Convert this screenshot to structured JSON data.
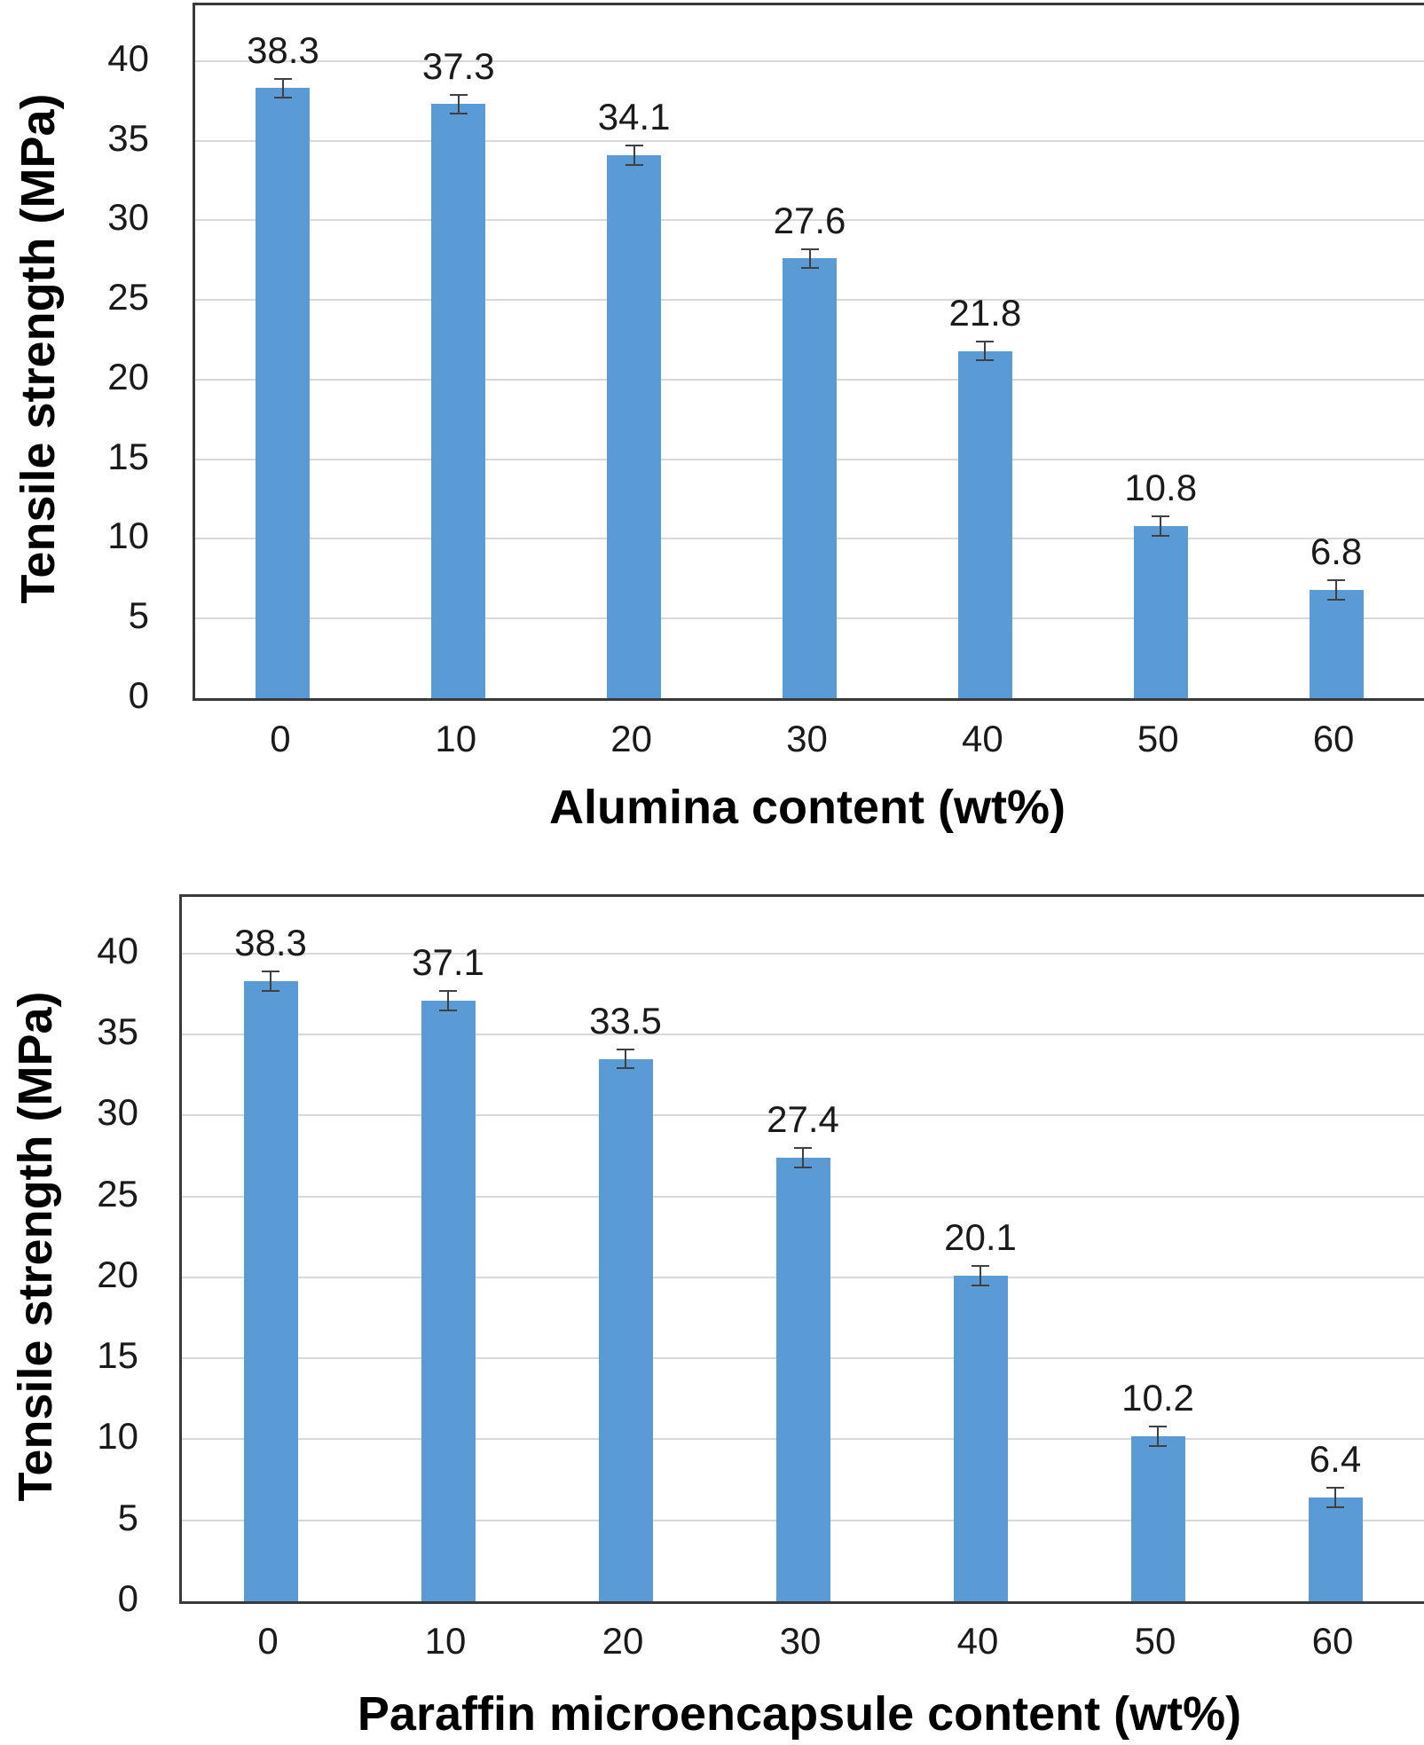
{
  "figure": {
    "background": "#ffffff",
    "bar_color": "#5b9bd5",
    "grid_color": "#d9d9d9",
    "axis_border_color": "#3a3a3a",
    "error_bar_color": "#404040",
    "text_color": "#1a1a1a"
  },
  "chart_data": [
    {
      "type": "bar",
      "title": "",
      "xlabel": "Alumina content (wt%)",
      "ylabel": "Tensile strength (MPa)",
      "categories": [
        "0",
        "10",
        "20",
        "30",
        "40",
        "50",
        "60"
      ],
      "values": [
        38.3,
        37.3,
        34.1,
        27.6,
        21.8,
        10.8,
        6.8
      ],
      "data_labels": [
        "38.3",
        "37.3",
        "34.1",
        "27.6",
        "21.8",
        "10.8",
        "6.8"
      ],
      "error_bars": [
        0.6,
        0.6,
        0.6,
        0.6,
        0.6,
        0.6,
        0.6
      ],
      "yticks": [
        0,
        5,
        10,
        15,
        20,
        25,
        30,
        35,
        40
      ],
      "ylim": [
        0,
        43.5
      ],
      "grid": true,
      "legend": "none",
      "bar_color": "#5b9bd5",
      "grid_color": "#d9d9d9",
      "error_color": "#404040"
    },
    {
      "type": "bar",
      "title": "",
      "xlabel": "Paraffin microencapsule content (wt%)",
      "ylabel": "Tensile strength (MPa)",
      "categories": [
        "0",
        "10",
        "20",
        "30",
        "40",
        "50",
        "60"
      ],
      "values": [
        38.3,
        37.1,
        33.5,
        27.4,
        20.1,
        10.2,
        6.4
      ],
      "data_labels": [
        "38.3",
        "37.1",
        "33.5",
        "27.4",
        "20.1",
        "10.2",
        "6.4"
      ],
      "error_bars": [
        0.6,
        0.6,
        0.6,
        0.6,
        0.6,
        0.6,
        0.6
      ],
      "yticks": [
        0,
        5,
        10,
        15,
        20,
        25,
        30,
        35,
        40
      ],
      "ylim": [
        0,
        43.5
      ],
      "grid": true,
      "legend": "none",
      "bar_color": "#5b9bd5",
      "grid_color": "#d9d9d9",
      "error_color": "#404040"
    }
  ]
}
